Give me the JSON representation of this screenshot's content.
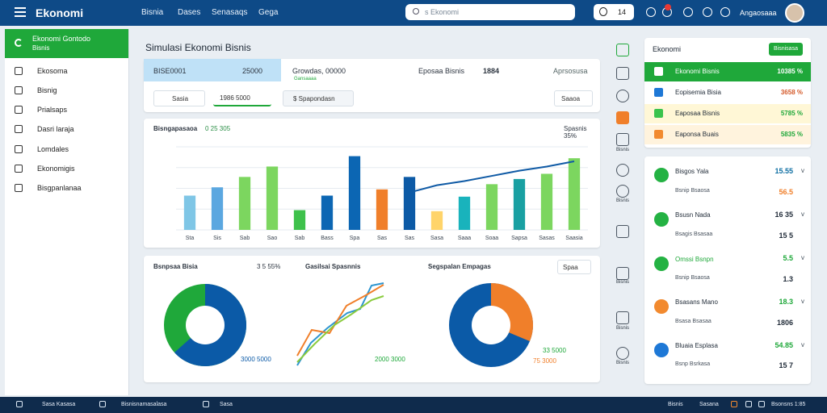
{
  "app": {
    "title": "Ekonomi",
    "nav": [
      "Bisnia",
      "Dases",
      "Senasaqs",
      "Gega"
    ],
    "search_placeholder": "s Ekonomi",
    "counter": "14",
    "user": "Angaosaaa"
  },
  "sidebar": {
    "header": "Ekonomi Gontodo",
    "header_sub": "Bisnis",
    "items": [
      {
        "label": "Ekosoma",
        "icon": "home-icon"
      },
      {
        "label": "Bisnig",
        "icon": "bag-icon"
      },
      {
        "label": "Prialsaps",
        "icon": "briefcase-icon"
      },
      {
        "label": "Dasri laraja",
        "icon": "megaphone-icon"
      },
      {
        "label": "Lomdales",
        "icon": "box-icon"
      },
      {
        "label": "Ekonomigis",
        "icon": "chat-icon"
      },
      {
        "label": "Bisgpanlanaa",
        "icon": "clock-icon"
      }
    ]
  },
  "main": {
    "title": "Simulasi Ekonomi Bisnis",
    "kpis": [
      "BISE0001",
      "25000",
      "Growdas, 00000",
      "Gansaaaa",
      "Eposaa Bisnis",
      "1884",
      "Aprsosusa"
    ],
    "filters": [
      "Sasia",
      "1986 5000",
      "$ Spapondasn",
      "Saaoa"
    ],
    "chart_title": "Bisngapasaoa",
    "chart_subtitle": "0 25 305",
    "chart_note": "Spasnis 35%",
    "chart_bottom": [
      "Bsnpsaa Bisia",
      "3 5 55%",
      "Gasilsai Spasnnis",
      "Segspalan Empagas",
      "Spaa"
    ],
    "legend_left": "3000 5000",
    "legend_mid": "2000 3000",
    "legend_right_bottom": "33 5000",
    "legend_right_bottom2": "75 3000"
  },
  "chart_data": {
    "type": "bar",
    "categories": [
      "Sta",
      "Sis",
      "Sab",
      "Sao",
      "Sab",
      "Bass",
      "Spa",
      "Sas",
      "Sas",
      "Sasa",
      "Saaa",
      "Soaa",
      "Sapsa",
      "Sasas",
      "Saasia"
    ],
    "values": [
      165,
      205,
      255,
      305,
      95,
      165,
      355,
      195,
      255,
      90,
      160,
      220,
      245,
      270,
      345
    ],
    "series_colors": [
      "#7fc6e6",
      "#5ba7e0",
      "#7cd65f",
      "#7cd65f",
      "#3ec14b",
      "#0c66b3",
      "#0c66b3",
      "#f07f2a",
      "#0c5aa6",
      "#ffd46a",
      "#19b3bc",
      "#7cd65f",
      "#19a0a2",
      "#7cd65f",
      "#7cd65f"
    ],
    "line_values": [
      180,
      215,
      235,
      260,
      285,
      305,
      330
    ],
    "ylim": [
      0,
      400
    ],
    "grid": true
  },
  "right_panel": {
    "title": "Ekonomi",
    "button": "Bisnisasa",
    "items": [
      {
        "label": "Ekonomi Bisnis",
        "value": "10385 %",
        "color": "#24b243"
      },
      {
        "label": "Eopisemia Bisia",
        "value": "3658 %",
        "color": "#1e78d6"
      },
      {
        "label": "Eaposaa Bisnis",
        "value": "5785 %",
        "color": "#3ac34c"
      },
      {
        "label": "Eaponsa Buais",
        "value": "5835 %",
        "color": "#f28a2f"
      }
    ]
  },
  "stats": [
    {
      "name": "Bisgos Yala",
      "sub": "Bsnip Bsaosa",
      "value": "15.55",
      "value2": "56.5",
      "icon_color": "#24b243"
    },
    {
      "name": "Bsusn Nada",
      "sub": "Bsagis Bsasaa",
      "value": "16 35",
      "value2": "15 5",
      "icon_color": "#24b243"
    },
    {
      "name": "Omssi Bsnpn",
      "sub": "Bsnip Bsaosa",
      "value": "5.5",
      "value2": "1.3",
      "icon_color": "#24b243"
    },
    {
      "name": "Bsasans Mano",
      "sub": "Bsasa Bsasaa",
      "value": "18.3",
      "value2": "1806",
      "icon_color": "#f28a2f"
    },
    {
      "name": "Bluaia Esplasa",
      "sub": "Bsnp Bsrkasa",
      "value": "54.85",
      "value2": "15 7",
      "icon_color": "#1e78d6"
    }
  ],
  "rail": [
    "Bisnis",
    "Bisnis",
    "Bisnis",
    "Bisnis",
    "Bisnis"
  ],
  "bottom": [
    "Sasa Kasasa",
    "Bisnisnamasalasa",
    "Sasa",
    "Bisnis",
    "Sasana",
    "Bsonsns 1:85"
  ]
}
